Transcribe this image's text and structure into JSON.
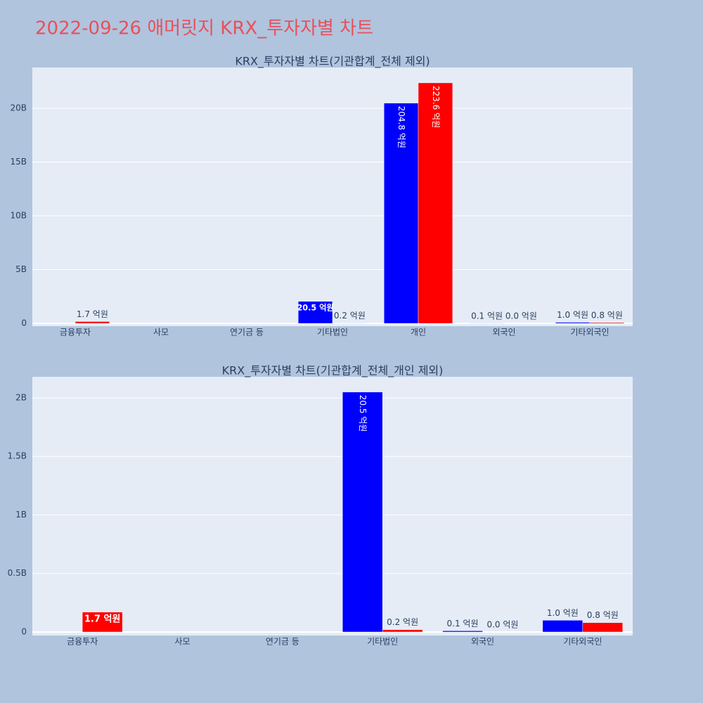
{
  "title": "2022-09-26 애머릿지 KRX_투자자별 차트",
  "chart_data": [
    {
      "type": "bar",
      "title": "KRX_투자자별 차트(기관합계_전체 제외)",
      "categories": [
        "금융투자",
        "사모",
        "연기금 등",
        "기타법인",
        "개인",
        "외국인",
        "기타외국인"
      ],
      "series": [
        {
          "color": "#0000ff",
          "values": [
            null,
            null,
            null,
            2050000000,
            20480000000,
            10000000,
            100000000
          ],
          "value_labels": [
            null,
            null,
            null,
            "20.5 억원",
            "204.8 억원",
            "0.1 억원",
            "1.0 억원"
          ]
        },
        {
          "color": "#ff0000",
          "values": [
            170000000,
            null,
            null,
            20000000,
            22360000000,
            0,
            80000000
          ],
          "value_labels": [
            "1.7 억원",
            null,
            null,
            "0.2 억원",
            "223.6 억원",
            "0.0 억원",
            "0.8 억원"
          ]
        }
      ],
      "ylim": [
        -260000000,
        23790000000
      ],
      "yticks": [
        0,
        {
          "value": 5000000000,
          "label": "5B"
        },
        {
          "value": 10000000000,
          "label": "10B"
        },
        {
          "value": 15000000000,
          "label": "15B"
        },
        {
          "value": 20000000000,
          "label": "20B"
        }
      ],
      "grid": true
    },
    {
      "type": "bar",
      "title": "KRX_투자자별 차트(기관합계_전체_개인 제외)",
      "categories": [
        "금융투자",
        "사모",
        "연기금 등",
        "기타법인",
        "외국인",
        "기타외국인"
      ],
      "series": [
        {
          "color": "#0000ff",
          "values": [
            null,
            null,
            null,
            2050000000,
            10000000,
            100000000
          ],
          "value_labels": [
            null,
            null,
            null,
            "20.5 억원",
            "0.1 억원",
            "1.0 억원"
          ]
        },
        {
          "color": "#ff0000",
          "values": [
            170000000,
            null,
            null,
            20000000,
            0,
            80000000
          ],
          "value_labels": [
            "1.7 억원",
            null,
            null,
            "0.2 억원",
            "0.0 억원",
            "0.8 억원"
          ]
        }
      ],
      "ylim": [
        -30000000,
        2180000000
      ],
      "yticks": [
        0,
        {
          "value": 500000000,
          "label": "0.5B"
        },
        {
          "value": 1000000000,
          "label": "1B"
        },
        {
          "value": 1500000000,
          "label": "1.5B"
        },
        {
          "value": 2000000000,
          "label": "2B"
        }
      ],
      "grid": true
    }
  ]
}
